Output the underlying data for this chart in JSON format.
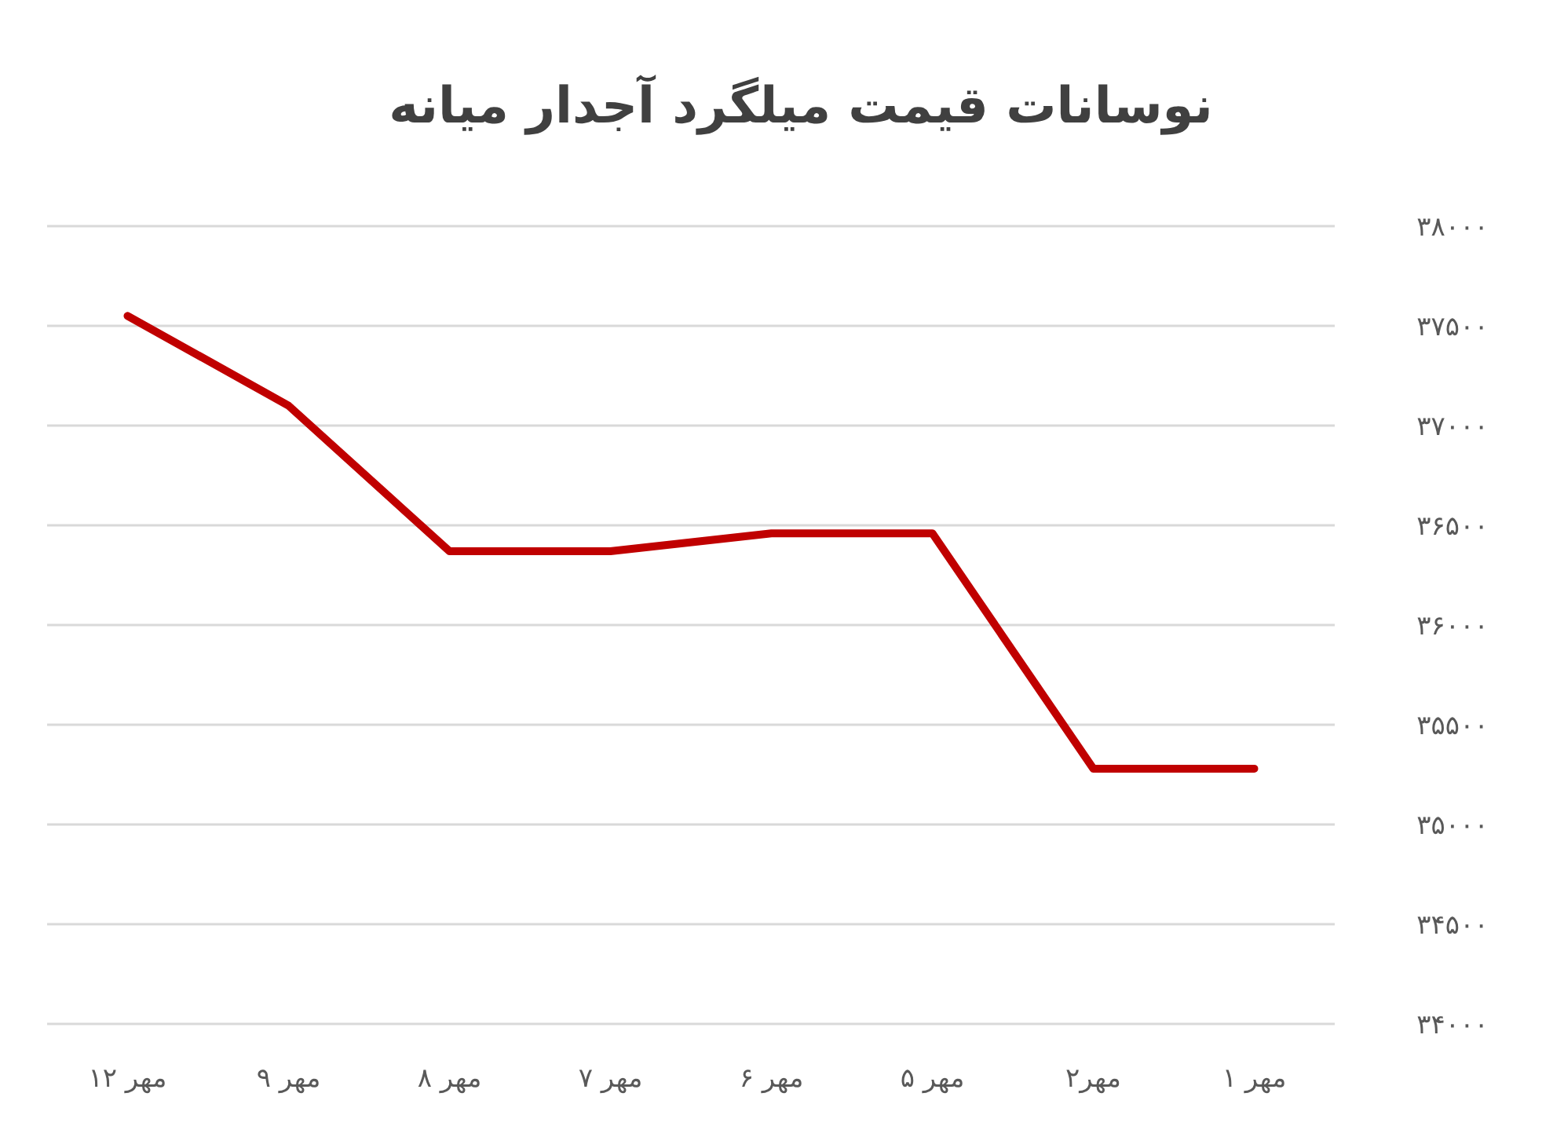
{
  "chart_data": {
    "type": "line",
    "title": "نوسانات قیمت میلگرد آجدار میانه",
    "categories": [
      "مهر ۱۲",
      "مهر ۹",
      "مهر ۸",
      "مهر ۷",
      "مهر ۶",
      "مهر ۵",
      "مهر۲",
      "مهر ۱"
    ],
    "series": [
      {
        "color": "#c00000",
        "values": [
          37550,
          37100,
          36370,
          36370,
          36460,
          36460,
          35280,
          35280
        ]
      }
    ],
    "ylim": [
      34000,
      38000
    ],
    "yticks": [
      {
        "value": 34000,
        "label": "۳۴۰۰۰"
      },
      {
        "value": 34500,
        "label": "۳۴۵۰۰"
      },
      {
        "value": 35000,
        "label": "۳۵۰۰۰"
      },
      {
        "value": 35500,
        "label": "۳۵۵۰۰"
      },
      {
        "value": 36000,
        "label": "۳۶۰۰۰"
      },
      {
        "value": 36500,
        "label": "۳۶۵۰۰"
      },
      {
        "value": 37000,
        "label": "۳۷۰۰۰"
      },
      {
        "value": 37500,
        "label": "۳۷۵۰۰"
      },
      {
        "value": 38000,
        "label": "۳۸۰۰۰"
      }
    ],
    "grid": "y",
    "marker": "none",
    "line_style": "solid"
  }
}
